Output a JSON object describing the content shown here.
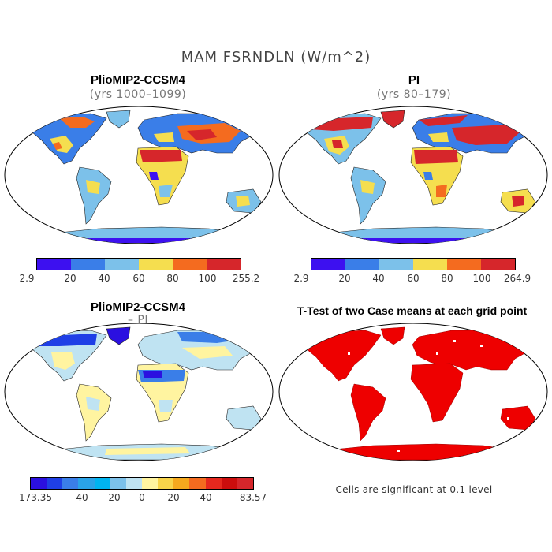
{
  "figure": {
    "title": "MAM FSRNDLN (W/m^2)"
  },
  "panels": {
    "top_left": {
      "title": "PlioMIP2-CCSM4",
      "subtitle": "(yrs 1000–1099)",
      "colorbar": {
        "colors": [
          "#3d10f0",
          "#3a7ee8",
          "#7cc1ea",
          "#f5de4f",
          "#f46b1f",
          "#d6262b"
        ],
        "labels": [
          "2.9",
          "20",
          "40",
          "60",
          "80",
          "100",
          "255.2"
        ]
      }
    },
    "top_right": {
      "title": "PI",
      "subtitle": "(yrs 80–179)",
      "colorbar": {
        "colors": [
          "#3d10f0",
          "#3a7ee8",
          "#7cc1ea",
          "#f5de4f",
          "#f46b1f",
          "#d6262b"
        ],
        "labels": [
          "2.9",
          "20",
          "40",
          "60",
          "80",
          "100",
          "264.9"
        ]
      }
    },
    "bottom_left": {
      "title": "PlioMIP2-CCSM4",
      "subtitle": "– PI",
      "colorbar": {
        "colors": [
          "#2b10e0",
          "#1f3fe6",
          "#3a7ee8",
          "#2aa3e8",
          "#00b4f0",
          "#7cc1ea",
          "#bfe3f2",
          "#fff4a0",
          "#f8d44a",
          "#f5a91e",
          "#f46b1f",
          "#e6281e",
          "#cc0d0d",
          "#d6262b"
        ],
        "labels": [
          "–173.35",
          "–40",
          "–20",
          "0",
          "20",
          "40",
          "83.57"
        ]
      }
    },
    "bottom_right": {
      "title": "T-Test of two Case means at each grid point",
      "note": "Cells are significant at 0.1 level",
      "fill_color": "#ee0000"
    }
  }
}
